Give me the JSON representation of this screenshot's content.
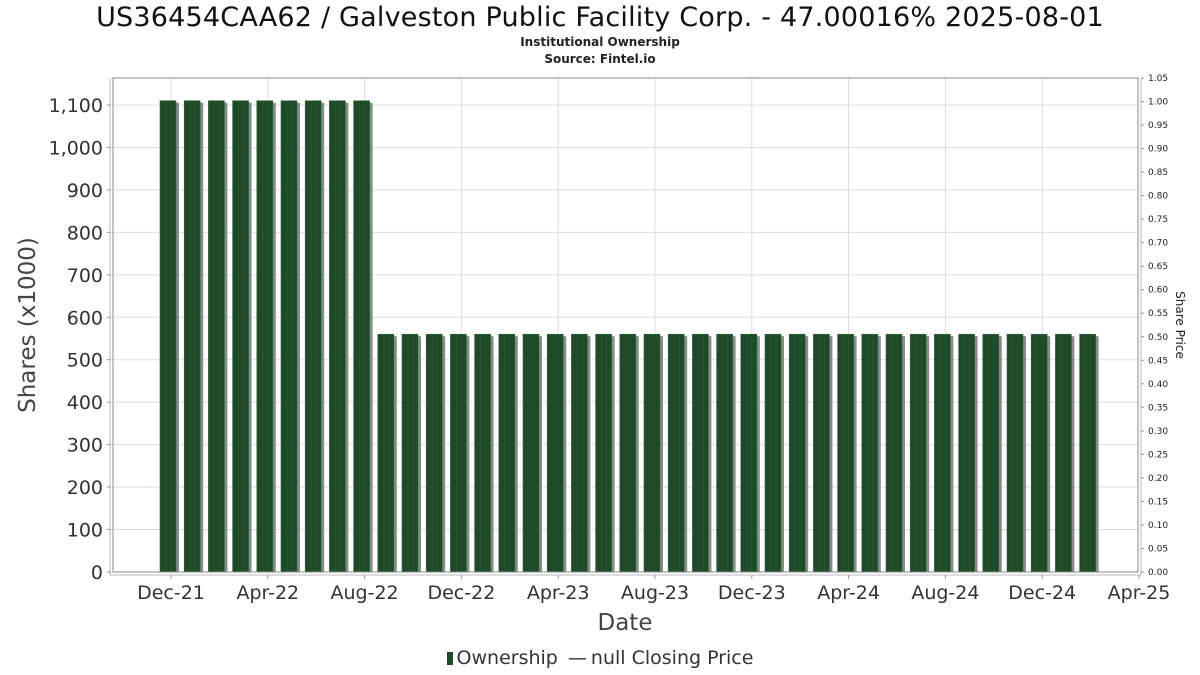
{
  "header": {
    "title": "US36454CAA62 / Galveston Public Facility Corp. - 47.00016% 2025-08-01",
    "subtitle": "Institutional Ownership",
    "source": "Source: Fintel.io"
  },
  "legend": {
    "ownership_label": "Ownership",
    "price_dash": "—",
    "price_label": "null Closing Price"
  },
  "colors": {
    "bar": "#1e4a28",
    "bar_shadow": "#8a8a8a",
    "grid": "#dddddd",
    "axis": "#888888"
  },
  "chart_data": {
    "type": "bar",
    "title": "US36454CAA62 / Galveston Public Facility Corp. - 47.00016% 2025-08-01",
    "subtitle": "Institutional Ownership",
    "xlabel": "Date",
    "ylabel": "Shares (x1000)",
    "y2label": "Share Price",
    "ylim": [
      0,
      1100
    ],
    "y2lim": [
      0,
      1.05
    ],
    "yticks": [
      0,
      100,
      200,
      300,
      400,
      500,
      600,
      700,
      800,
      900,
      1000,
      1100
    ],
    "ytick_labels": [
      "0",
      "100",
      "200",
      "300",
      "400",
      "500",
      "600",
      "700",
      "800",
      "900",
      "1,000",
      "1,100"
    ],
    "y2ticks": [
      "0.00",
      "0.05",
      "0.10",
      "0.15",
      "0.20",
      "0.25",
      "0.30",
      "0.35",
      "0.40",
      "0.45",
      "0.50",
      "0.55",
      "0.60",
      "0.65",
      "0.70",
      "0.75",
      "0.80",
      "0.85",
      "0.90",
      "0.95",
      "1.00",
      "1.05"
    ],
    "xtick_labels": [
      "Dec-21",
      "Apr-22",
      "Aug-22",
      "Dec-22",
      "Apr-23",
      "Aug-23",
      "Dec-23",
      "Apr-24",
      "Aug-24",
      "Dec-24",
      "Apr-25"
    ],
    "grid": true,
    "legend_position": "bottom",
    "categories": [
      "Dec-21",
      "Jan-22",
      "Feb-22",
      "Mar-22",
      "Apr-22",
      "May-22",
      "Jun-22",
      "Jul-22",
      "Aug-22",
      "Sep-22",
      "Oct-22",
      "Nov-22",
      "Dec-22",
      "Jan-23",
      "Feb-23",
      "Mar-23",
      "Apr-23",
      "May-23",
      "Jun-23",
      "Jul-23",
      "Aug-23",
      "Sep-23",
      "Oct-23",
      "Nov-23",
      "Dec-23",
      "Jan-24",
      "Feb-24",
      "Mar-24",
      "Apr-24",
      "May-24",
      "Jun-24",
      "Jul-24",
      "Aug-24",
      "Sep-24",
      "Oct-24",
      "Nov-24",
      "Dec-24",
      "Jan-25",
      "Feb-25"
    ],
    "series": [
      {
        "name": "Ownership",
        "values": [
          1110,
          1110,
          1110,
          1110,
          1110,
          1110,
          1110,
          1110,
          1110,
          560,
          560,
          560,
          560,
          560,
          560,
          560,
          560,
          560,
          560,
          560,
          560,
          560,
          560,
          560,
          560,
          560,
          560,
          560,
          560,
          560,
          560,
          560,
          560,
          560,
          560,
          560,
          560,
          560,
          560
        ]
      },
      {
        "name": "null Closing Price",
        "values": []
      }
    ]
  }
}
